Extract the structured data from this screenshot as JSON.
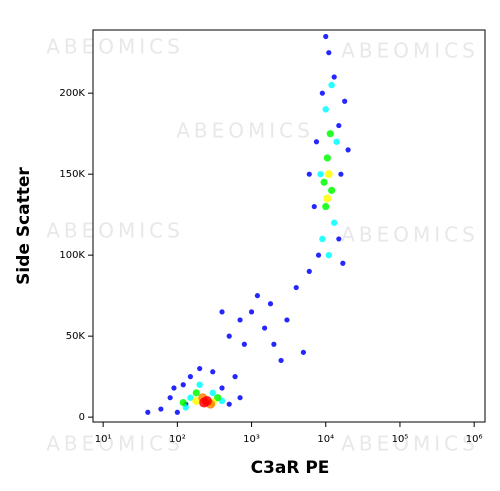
{
  "chart_data": {
    "type": "scatter",
    "watermark": "ABEOMICS",
    "x_label": "C3aR PE",
    "y_label": "Side Scatter",
    "xlog": true,
    "xlim": [
      7.3,
      1400000
    ],
    "xticks": [
      {
        "value": 10,
        "label": "10¹"
      },
      {
        "value": 100,
        "label": "10²"
      },
      {
        "value": 1000,
        "label": "10³"
      },
      {
        "value": 10000,
        "label": "10⁴"
      },
      {
        "value": 100000,
        "label": "10⁵"
      },
      {
        "value": 1000000,
        "label": "10⁶"
      }
    ],
    "ylim": [
      -3000,
      239000
    ],
    "yticks": [
      0,
      {
        "value": 50000,
        "label": "50K"
      },
      {
        "value": 100000,
        "label": "100K"
      },
      {
        "value": 150000,
        "label": "150K"
      },
      {
        "value": 200000,
        "label": "200K"
      }
    ],
    "series": [
      {
        "color": "#0000ff",
        "x": [
          60,
          80,
          100,
          120,
          150,
          200,
          300,
          400,
          500,
          700,
          130,
          40,
          90,
          600,
          500,
          700,
          1000,
          1500,
          2000,
          800,
          1200,
          3000,
          400,
          2500,
          1800,
          5000,
          4000,
          6000,
          8000,
          15000,
          7000,
          16000,
          7500,
          15000,
          9000,
          13000,
          11000,
          17000,
          6000,
          18000,
          10000,
          20000
        ],
        "values": [
          5000,
          12000,
          3000,
          20000,
          25000,
          30000,
          28000,
          18000,
          8000,
          12000,
          8000,
          3000,
          18000,
          25000,
          50000,
          60000,
          65000,
          55000,
          45000,
          45000,
          75000,
          60000,
          65000,
          35000,
          70000,
          40000,
          80000,
          90000,
          100000,
          110000,
          130000,
          150000,
          170000,
          180000,
          200000,
          210000,
          225000,
          95000,
          150000,
          195000,
          235000,
          165000
        ]
      },
      {
        "color": "#00ffff",
        "x": [
          9000,
          13000,
          8500,
          14000,
          10000,
          12000,
          200,
          300,
          150,
          130,
          400,
          11000
        ],
        "values": [
          110000,
          120000,
          150000,
          170000,
          190000,
          205000,
          20000,
          15000,
          12000,
          6000,
          10000,
          100000
        ]
      },
      {
        "color": "#00ff00",
        "x": [
          10000,
          12000,
          10500,
          11500,
          9500,
          180,
          350,
          120
        ],
        "values": [
          130000,
          140000,
          160000,
          175000,
          145000,
          15000,
          12000,
          9000
        ]
      },
      {
        "color": "#ffff00",
        "x": [
          11000,
          10500,
          300,
          180
        ],
        "values": [
          150000,
          135000,
          9000,
          10000
        ]
      },
      {
        "color": "#ff8000",
        "x": [
          220,
          280
        ],
        "values": [
          12000,
          8000
        ]
      },
      {
        "color": "#ff0000",
        "x": [
          250,
          230
        ],
        "values": [
          10000,
          9000
        ]
      }
    ]
  }
}
